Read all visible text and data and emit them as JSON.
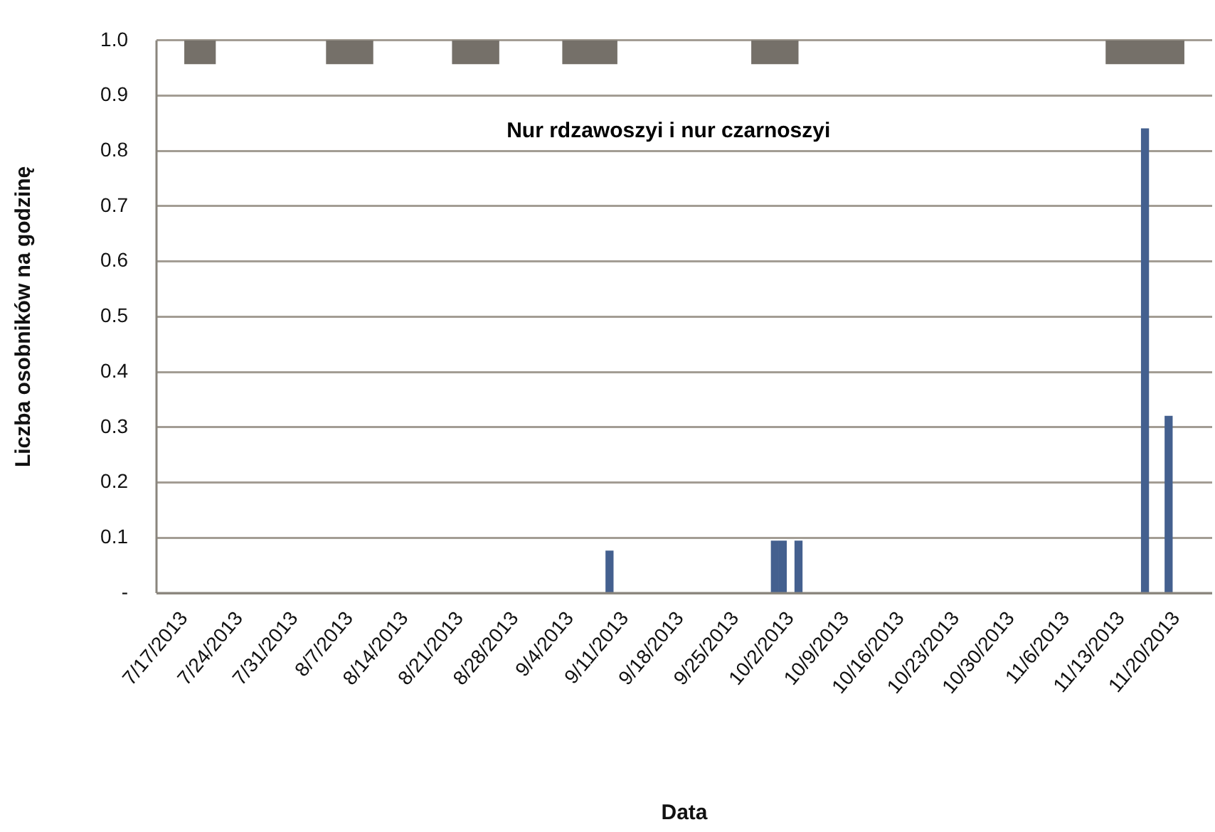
{
  "chart_data": {
    "type": "bar",
    "title": "Nur rdzawoszyi i nur czarnoszyi",
    "xlabel": "Data",
    "ylabel": "Liczba osobników na godzinę",
    "x": [
      "2013-09-09",
      "2013-09-30",
      "2013-10-01",
      "2013-10-03",
      "2013-11-16",
      "2013-11-19"
    ],
    "series": [
      {
        "color": "#44608f",
        "values": [
          0.076,
          0.094,
          0.094,
          0.094,
          0.84,
          0.32
        ]
      }
    ],
    "xlim": [
      "2013-07-17",
      "2013-11-21"
    ],
    "xticks": [
      {
        "value": "2013-07-17",
        "label": "7/17/2013"
      },
      {
        "value": "2013-07-24",
        "label": "7/24/2013"
      },
      {
        "value": "2013-07-31",
        "label": "7/31/2013"
      },
      {
        "value": "2013-08-07",
        "label": "8/7/2013"
      },
      {
        "value": "2013-08-14",
        "label": "8/14/2013"
      },
      {
        "value": "2013-08-21",
        "label": "8/21/2013"
      },
      {
        "value": "2013-08-28",
        "label": "8/28/2013"
      },
      {
        "value": "2013-09-04",
        "label": "9/4/2013"
      },
      {
        "value": "2013-09-11",
        "label": "9/11/2013"
      },
      {
        "value": "2013-09-18",
        "label": "9/18/2013"
      },
      {
        "value": "2013-09-25",
        "label": "9/25/2013"
      },
      {
        "value": "2013-10-02",
        "label": "10/2/2013"
      },
      {
        "value": "2013-10-09",
        "label": "10/9/2013"
      },
      {
        "value": "2013-10-16",
        "label": "10/16/2013"
      },
      {
        "value": "2013-10-23",
        "label": "10/23/2013"
      },
      {
        "value": "2013-10-30",
        "label": "10/30/2013"
      },
      {
        "value": "2013-11-06",
        "label": "11/6/2013"
      },
      {
        "value": "2013-11-13",
        "label": "11/13/2013"
      },
      {
        "value": "2013-11-20",
        "label": "11/20/2013"
      }
    ],
    "ylim": [
      0,
      1
    ],
    "yticks": [
      {
        "value": 0,
        "label": "-"
      },
      0.1,
      0.2,
      0.3,
      0.4,
      0.5,
      0.6,
      0.7,
      0.8,
      0.9,
      {
        "value": 1,
        "label": "1.0"
      }
    ],
    "grid": "y",
    "legend": false,
    "bands": [
      {
        "axis": "x",
        "from": "2013-07-17",
        "to": "2013-07-21",
        "color": "#757069"
      },
      {
        "axis": "x",
        "from": "2013-08-04",
        "to": "2013-08-10",
        "color": "#757069"
      },
      {
        "axis": "x",
        "from": "2013-08-20",
        "to": "2013-08-26",
        "color": "#757069"
      },
      {
        "axis": "x",
        "from": "2013-09-03",
        "to": "2013-09-10",
        "color": "#757069"
      },
      {
        "axis": "x",
        "from": "2013-09-27",
        "to": "2013-10-03",
        "color": "#757069"
      },
      {
        "axis": "x",
        "from": "2013-11-11",
        "to": "2013-11-21",
        "color": "#757069"
      }
    ]
  }
}
